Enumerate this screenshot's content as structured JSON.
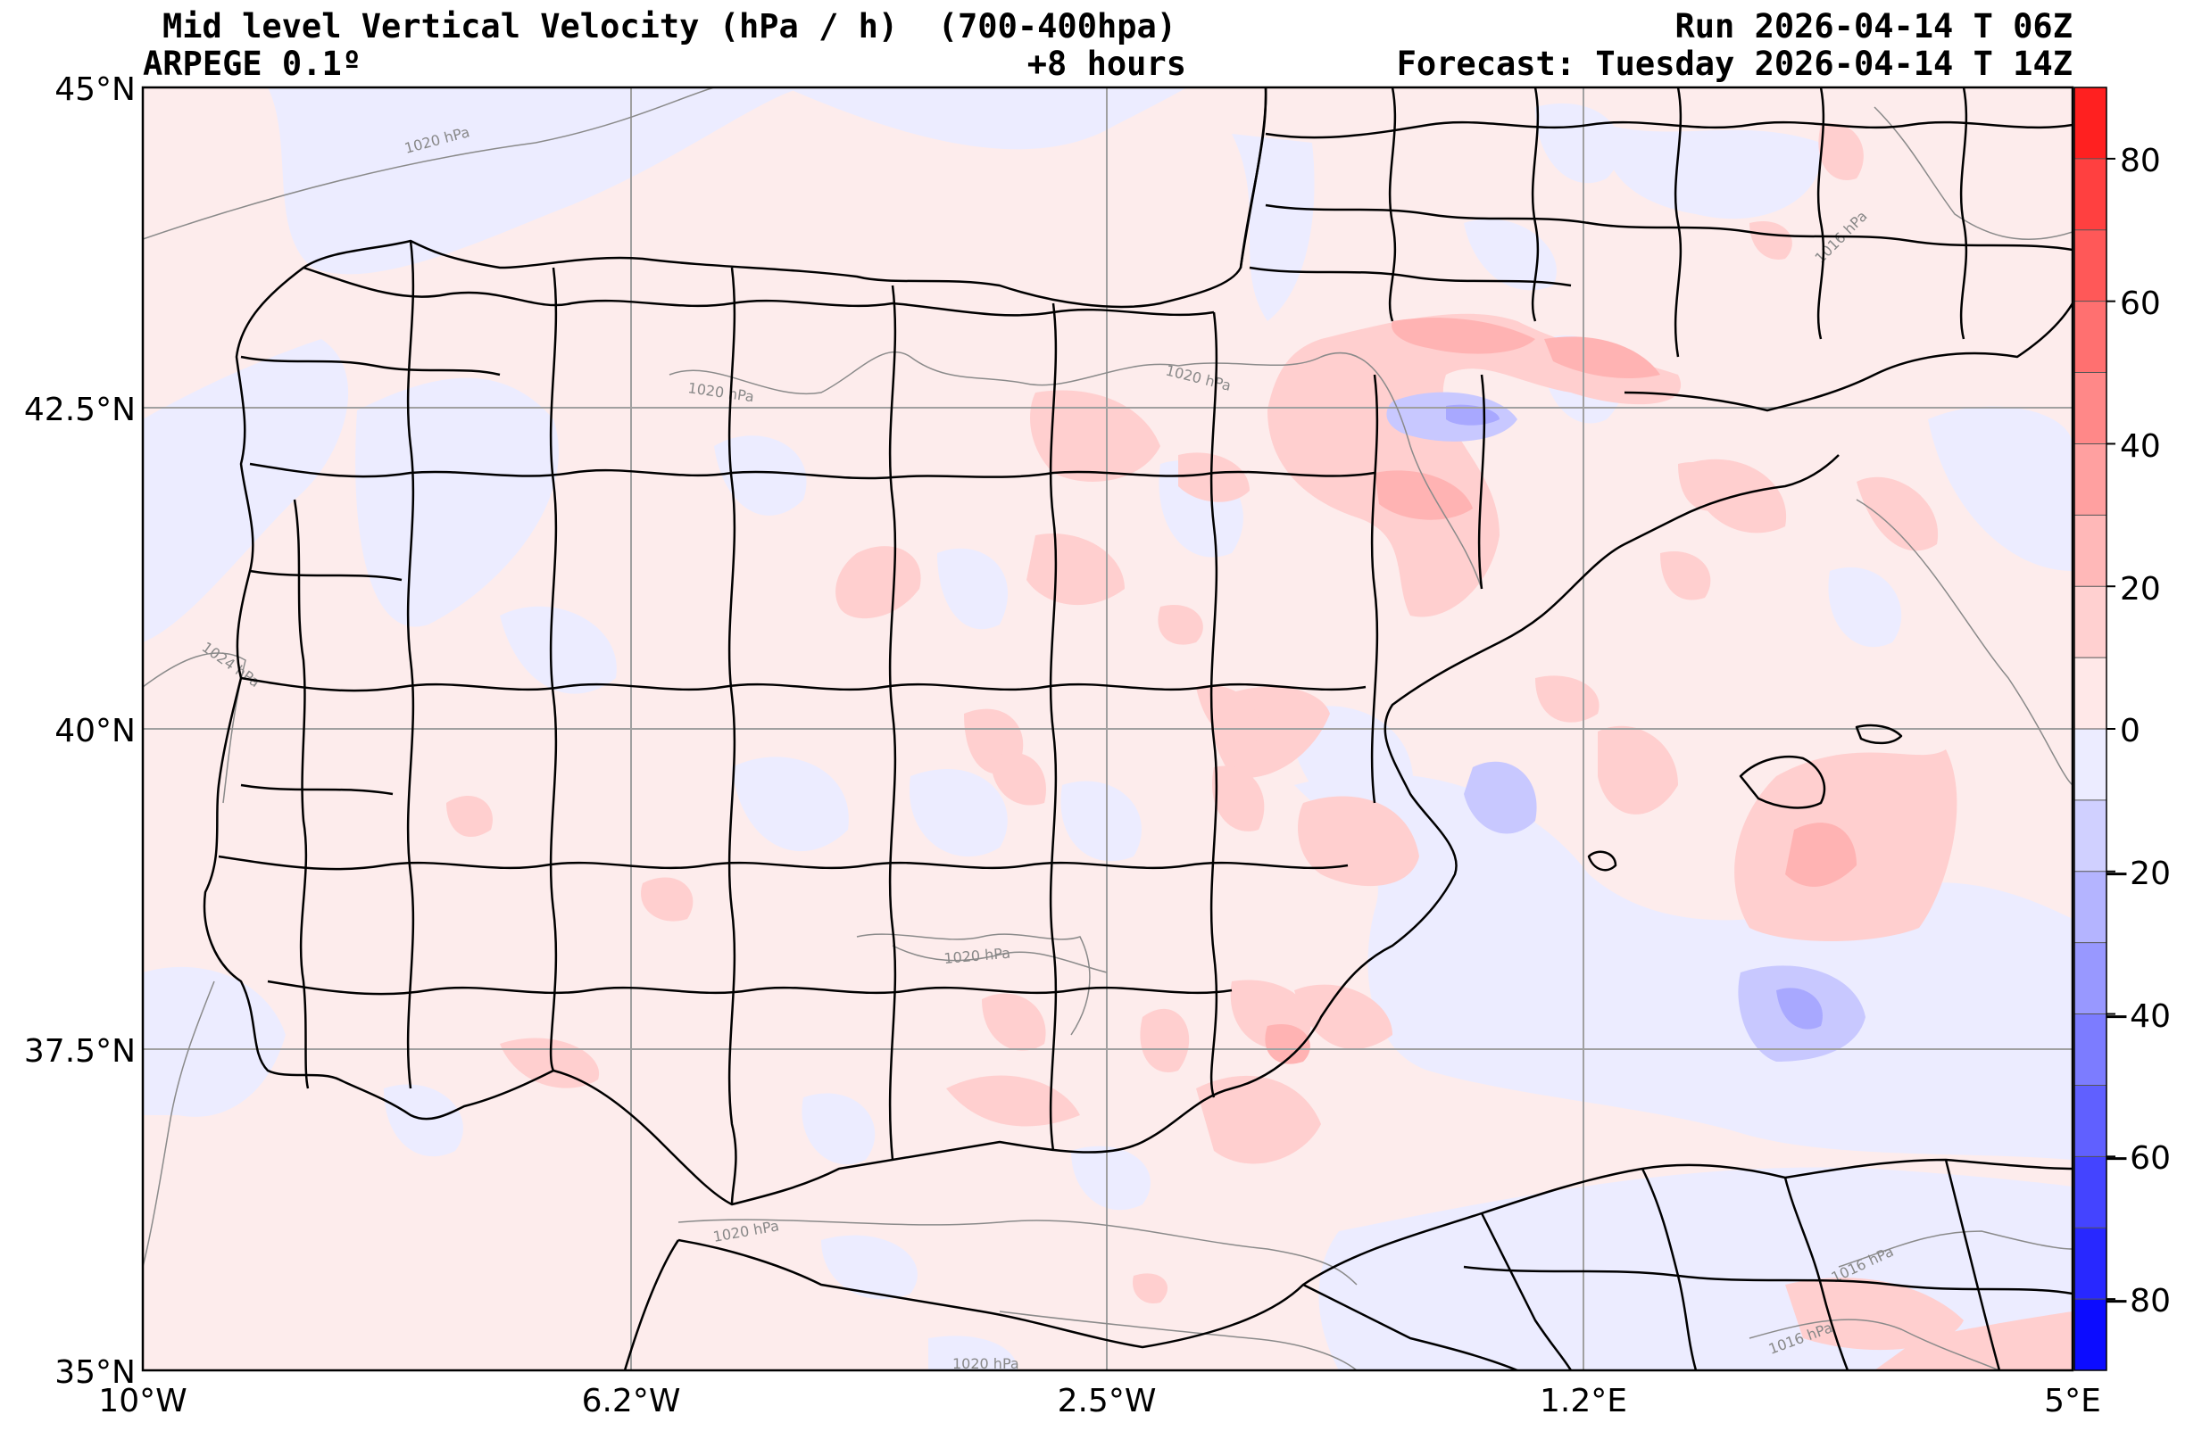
{
  "header": {
    "title": "Mid level Vertical Velocity (hPa / h)  (700-400hpa)",
    "model": "ARPEGE 0.1º",
    "lead": "+8 hours",
    "run": "Run 2026-04-14 T 06Z",
    "forecast": "Forecast: Tuesday 2026-04-14 T 14Z"
  },
  "axes": {
    "lat_labels": [
      "45°N",
      "42.5°N",
      "40°N",
      "37.5°N",
      "35°N"
    ],
    "lon_labels": [
      "10°W",
      "6.2°W",
      "2.5°W",
      "1.2°E",
      "5°E"
    ]
  },
  "colorbar": {
    "tick_labels": [
      "80",
      "60",
      "40",
      "20",
      "0",
      "−20",
      "−40",
      "−60",
      "−80"
    ],
    "min": -90,
    "max": 90,
    "step": 10,
    "colors_positive": [
      "#ffe8e8",
      "#ffd0d0",
      "#ffb8b8",
      "#ffa0a0",
      "#ff8888",
      "#ff7070",
      "#ff5858",
      "#ff4040",
      "#ff2020"
    ],
    "colors_negative": [
      "#ececff",
      "#d0d0ff",
      "#b4b4ff",
      "#9898ff",
      "#7c7cff",
      "#6060ff",
      "#4444ff",
      "#2828ff",
      "#0c0cff"
    ]
  },
  "isobars": [
    "1020 hPa",
    "1020 hPa",
    "1020 hPa",
    "1024 hPa",
    "1016 hPa",
    "1020 hPa",
    "1020 hPa",
    "1016 hPa",
    "1016 hPa",
    "1020 hPa"
  ],
  "colors": {
    "background_field": "#fdecec",
    "weak_negative": "#ececff",
    "borders": "#000000",
    "isobar": "#8a8a8a",
    "grid": "#a0a0a0"
  }
}
